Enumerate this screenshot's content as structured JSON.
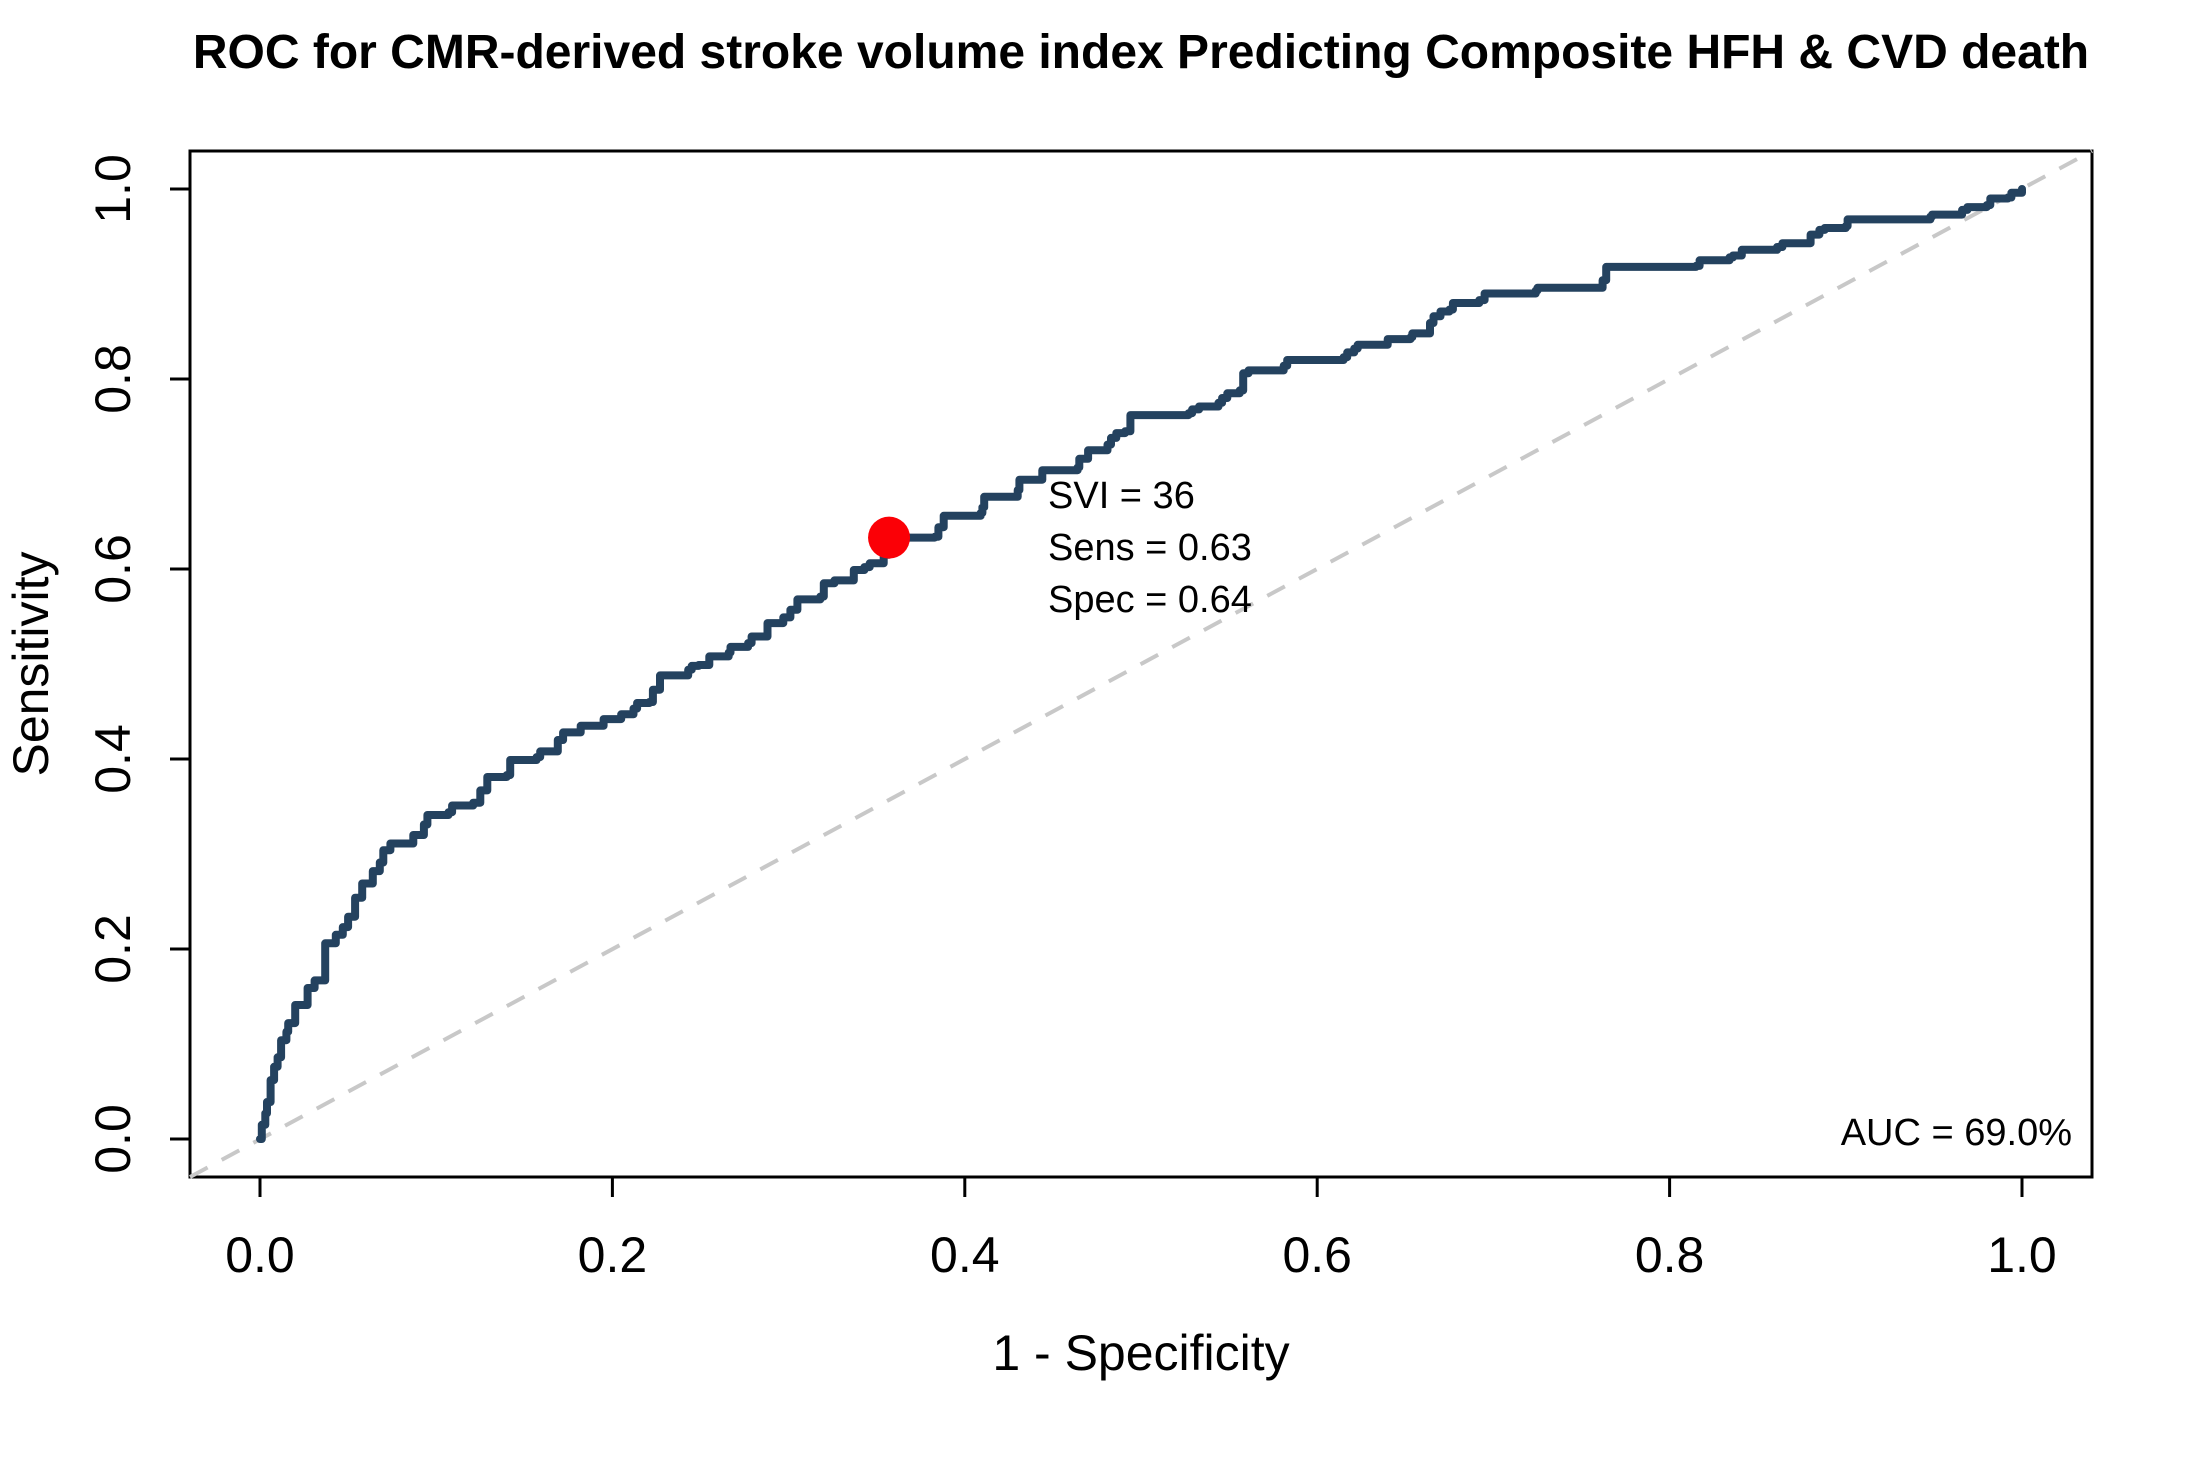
{
  "chart_data": {
    "type": "line",
    "subtype": "roc-curve",
    "title": "ROC for CMR-derived stroke volume index Predicting Composite HFH & CVD death",
    "xlabel": "1 - Specificity",
    "ylabel": "Sensitivity",
    "xlim": [
      0.0,
      1.0
    ],
    "ylim": [
      0.0,
      1.0
    ],
    "grid": false,
    "x_ticks": [
      {
        "v": 0.0,
        "label": "0.0"
      },
      {
        "v": 0.2,
        "label": "0.2"
      },
      {
        "v": 0.4,
        "label": "0.4"
      },
      {
        "v": 0.6,
        "label": "0.6"
      },
      {
        "v": 0.8,
        "label": "0.8"
      },
      {
        "v": 1.0,
        "label": "1.0"
      }
    ],
    "y_ticks": [
      {
        "v": 0.0,
        "label": "0.0"
      },
      {
        "v": 0.2,
        "label": "0.2"
      },
      {
        "v": 0.4,
        "label": "0.4"
      },
      {
        "v": 0.6,
        "label": "0.6"
      },
      {
        "v": 0.8,
        "label": "0.8"
      },
      {
        "v": 1.0,
        "label": "1.0"
      }
    ],
    "annotation_lines": [
      "SVI = 36",
      "Sens = 0.63",
      "Spec = 0.64"
    ],
    "auc_label": "AUC = 69.0%",
    "auc_value_pct": 69.0,
    "cutoff": {
      "svi": 36,
      "sensitivity": 0.63,
      "specificity": 0.64
    },
    "marker": {
      "x": 0.357,
      "y": 0.633
    },
    "colors": {
      "curve": "#24425f",
      "marker": "#fb0006",
      "diagonal": "#c8c8c8",
      "axis": "#000000",
      "background": "#ffffff"
    },
    "diagonal_reference": {
      "from": [
        0.0,
        0.0
      ],
      "to": [
        1.0,
        1.0
      ],
      "style": "dashed"
    },
    "roc_points": [
      [
        0.0,
        0.0
      ],
      [
        0.001,
        0.015
      ],
      [
        0.003,
        0.027
      ],
      [
        0.004,
        0.039
      ],
      [
        0.006,
        0.062
      ],
      [
        0.008,
        0.076
      ],
      [
        0.01,
        0.086
      ],
      [
        0.012,
        0.104
      ],
      [
        0.015,
        0.113
      ],
      [
        0.016,
        0.122
      ],
      [
        0.02,
        0.141
      ],
      [
        0.027,
        0.143
      ],
      [
        0.027,
        0.159
      ],
      [
        0.031,
        0.167
      ],
      [
        0.037,
        0.175
      ],
      [
        0.037,
        0.206
      ],
      [
        0.043,
        0.215
      ],
      [
        0.047,
        0.223
      ],
      [
        0.05,
        0.234
      ],
      [
        0.054,
        0.254
      ],
      [
        0.058,
        0.269
      ],
      [
        0.064,
        0.282
      ],
      [
        0.068,
        0.291
      ],
      [
        0.07,
        0.304
      ],
      [
        0.074,
        0.311
      ],
      [
        0.087,
        0.32
      ],
      [
        0.093,
        0.331
      ],
      [
        0.095,
        0.341
      ],
      [
        0.107,
        0.344
      ],
      [
        0.109,
        0.351
      ],
      [
        0.121,
        0.354
      ],
      [
        0.125,
        0.367
      ],
      [
        0.129,
        0.381
      ],
      [
        0.14,
        0.383
      ],
      [
        0.142,
        0.399
      ],
      [
        0.157,
        0.402
      ],
      [
        0.159,
        0.408
      ],
      [
        0.169,
        0.42
      ],
      [
        0.172,
        0.428
      ],
      [
        0.182,
        0.435
      ],
      [
        0.195,
        0.442
      ],
      [
        0.205,
        0.447
      ],
      [
        0.212,
        0.453
      ],
      [
        0.214,
        0.459
      ],
      [
        0.221,
        0.46
      ],
      [
        0.223,
        0.473
      ],
      [
        0.227,
        0.488
      ],
      [
        0.243,
        0.494
      ],
      [
        0.245,
        0.498
      ],
      [
        0.249,
        0.499
      ],
      [
        0.255,
        0.508
      ],
      [
        0.266,
        0.512
      ],
      [
        0.267,
        0.518
      ],
      [
        0.277,
        0.522
      ],
      [
        0.279,
        0.529
      ],
      [
        0.288,
        0.543
      ],
      [
        0.297,
        0.549
      ],
      [
        0.301,
        0.557
      ],
      [
        0.305,
        0.568
      ],
      [
        0.318,
        0.571
      ],
      [
        0.32,
        0.585
      ],
      [
        0.326,
        0.588
      ],
      [
        0.337,
        0.599
      ],
      [
        0.343,
        0.602
      ],
      [
        0.346,
        0.606
      ],
      [
        0.354,
        0.615
      ],
      [
        0.357,
        0.633
      ],
      [
        0.383,
        0.634
      ],
      [
        0.385,
        0.644
      ],
      [
        0.388,
        0.656
      ],
      [
        0.409,
        0.659
      ],
      [
        0.41,
        0.665
      ],
      [
        0.411,
        0.676
      ],
      [
        0.43,
        0.683
      ],
      [
        0.431,
        0.694
      ],
      [
        0.444,
        0.696
      ],
      [
        0.444,
        0.704
      ],
      [
        0.464,
        0.707
      ],
      [
        0.465,
        0.716
      ],
      [
        0.47,
        0.725
      ],
      [
        0.481,
        0.731
      ],
      [
        0.483,
        0.738
      ],
      [
        0.486,
        0.743
      ],
      [
        0.491,
        0.745
      ],
      [
        0.494,
        0.762
      ],
      [
        0.527,
        0.764
      ],
      [
        0.529,
        0.768
      ],
      [
        0.533,
        0.771
      ],
      [
        0.544,
        0.775
      ],
      [
        0.546,
        0.78
      ],
      [
        0.549,
        0.785
      ],
      [
        0.556,
        0.788
      ],
      [
        0.558,
        0.806
      ],
      [
        0.561,
        0.809
      ],
      [
        0.581,
        0.814
      ],
      [
        0.583,
        0.82
      ],
      [
        0.615,
        0.823
      ],
      [
        0.617,
        0.828
      ],
      [
        0.621,
        0.832
      ],
      [
        0.623,
        0.836
      ],
      [
        0.64,
        0.842
      ],
      [
        0.653,
        0.844
      ],
      [
        0.654,
        0.848
      ],
      [
        0.664,
        0.859
      ],
      [
        0.666,
        0.866
      ],
      [
        0.67,
        0.871
      ],
      [
        0.675,
        0.873
      ],
      [
        0.677,
        0.88
      ],
      [
        0.692,
        0.883
      ],
      [
        0.695,
        0.89
      ],
      [
        0.724,
        0.893
      ],
      [
        0.725,
        0.896
      ],
      [
        0.762,
        0.904
      ],
      [
        0.764,
        0.918
      ],
      [
        0.815,
        0.919
      ],
      [
        0.817,
        0.925
      ],
      [
        0.834,
        0.928
      ],
      [
        0.836,
        0.93
      ],
      [
        0.841,
        0.936
      ],
      [
        0.861,
        0.939
      ],
      [
        0.864,
        0.943
      ],
      [
        0.88,
        0.952
      ],
      [
        0.885,
        0.957
      ],
      [
        0.888,
        0.959
      ],
      [
        0.9,
        0.961
      ],
      [
        0.901,
        0.968
      ],
      [
        0.948,
        0.971
      ],
      [
        0.949,
        0.973
      ],
      [
        0.966,
        0.978
      ],
      [
        0.969,
        0.981
      ],
      [
        0.98,
        0.983
      ],
      [
        0.982,
        0.99
      ],
      [
        0.992,
        0.991
      ],
      [
        0.994,
        0.996
      ],
      [
        1.0,
        1.0
      ]
    ]
  }
}
